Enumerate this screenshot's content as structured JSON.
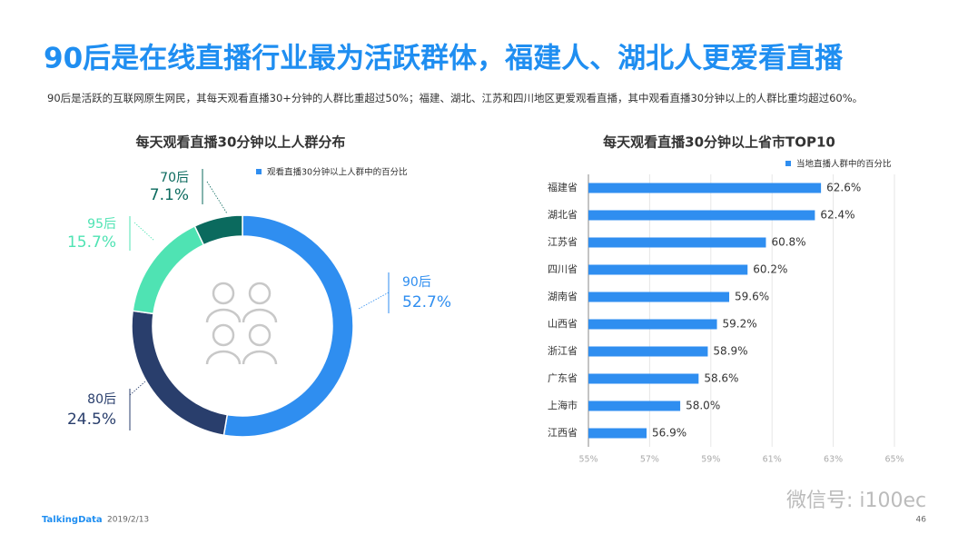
{
  "header": {
    "title": "90后是在线直播行业最为活跃群体，福建人、湖北人更爱看直播",
    "subtitle": "90后是活跃的互联网原生网民，其每天观看直播30+分钟的人群比重超过50%；福建、湖北、江苏和四川地区更爱观看直播，其中观看直播30分钟以上的人群比重均超过60%。"
  },
  "chart_data": [
    {
      "type": "donut",
      "title": "每天观看直播30分钟以上人群分布",
      "categories": [
        "90后",
        "80后",
        "95后",
        "70后"
      ],
      "colors": [
        "#2f8ef0",
        "#293e6c",
        "#4fe3b3",
        "#0b6a5e"
      ],
      "series": [
        {
          "name": "观看直播30分钟以上人群中的百分比",
          "color": "#2f8ef0",
          "values": [
            52.7,
            24.5,
            15.7,
            7.1
          ],
          "value_labels": [
            "52.7%",
            "24.5%",
            "15.7%",
            "7.1%"
          ]
        }
      ]
    },
    {
      "type": "hbar",
      "title": "每天观看直播30分钟以上省市TOP10",
      "categories": [
        "福建省",
        "湖北省",
        "江苏省",
        "四川省",
        "湖南省",
        "山西省",
        "浙江省",
        "广东省",
        "上海市",
        "江西省"
      ],
      "series": [
        {
          "name": "当地直播人群中的百分比",
          "color": "#2f8ef0",
          "values": [
            62.6,
            62.4,
            60.8,
            60.2,
            59.6,
            59.2,
            58.9,
            58.6,
            58.0,
            56.9
          ],
          "value_labels": [
            "62.6%",
            "62.4%",
            "60.8%",
            "60.2%",
            "59.6%",
            "59.2%",
            "58.9%",
            "58.6%",
            "58.0%",
            "56.9%"
          ]
        }
      ],
      "xlim": [
        55,
        65
      ],
      "xticks": [
        {
          "value": 55,
          "label": "55%"
        },
        {
          "value": 57,
          "label": "57%"
        },
        {
          "value": 59,
          "label": "59%"
        },
        {
          "value": 61,
          "label": "61%"
        },
        {
          "value": 63,
          "label": "63%"
        },
        {
          "value": 65,
          "label": "65%"
        }
      ],
      "grid": true
    }
  ],
  "footer": {
    "brand": "TalkingData",
    "date": "2019/2/13",
    "page": "46",
    "watermark": "微信号: i100ec"
  }
}
